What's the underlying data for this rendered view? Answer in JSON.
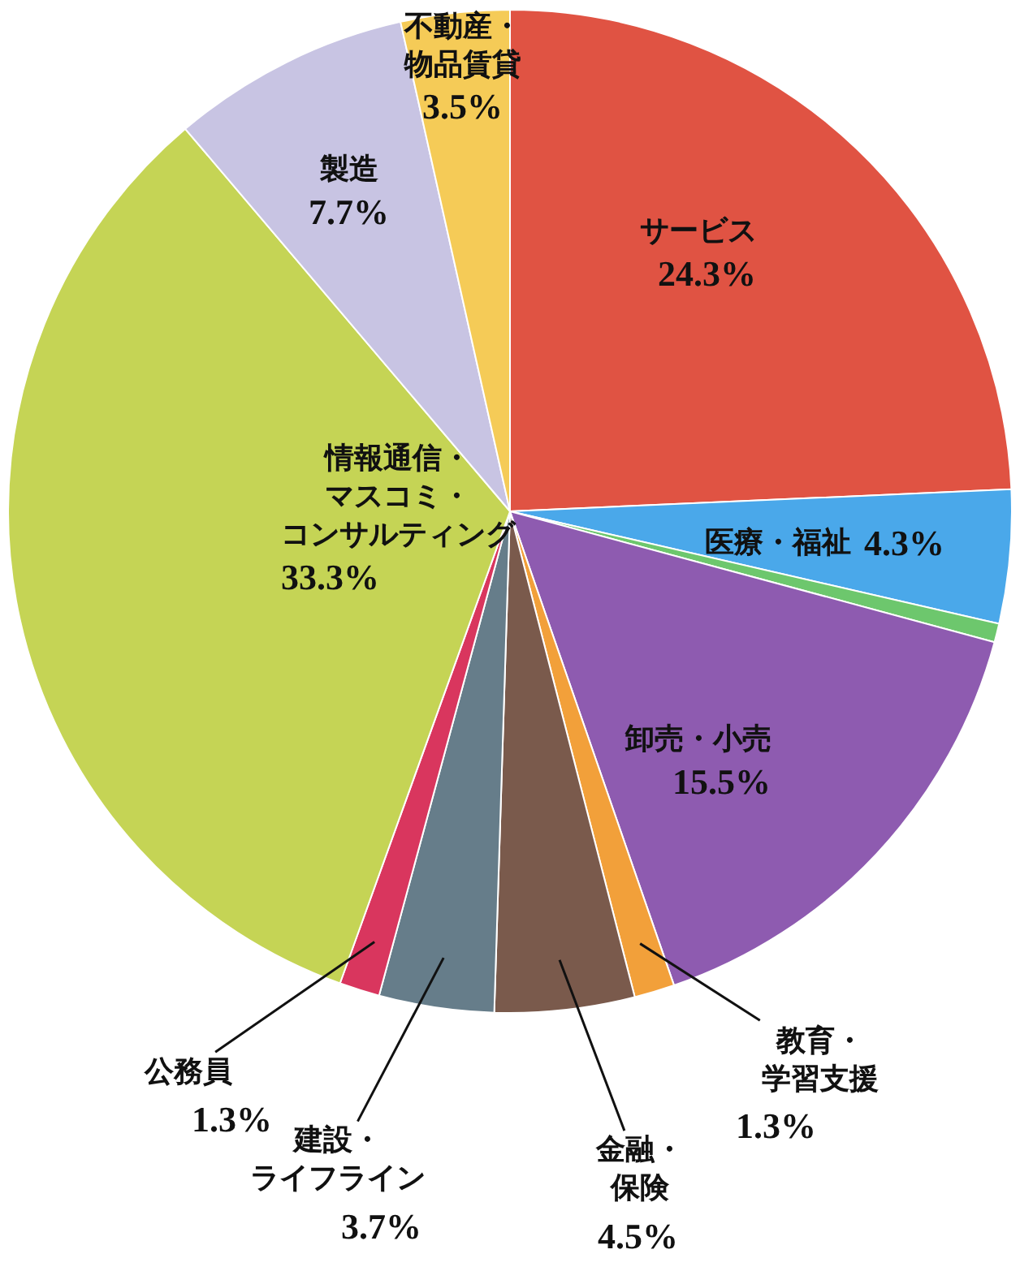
{
  "chart_data": {
    "type": "pie",
    "categories": [
      "サービス",
      "医療・福祉",
      null,
      "卸売・小売",
      "教育・学習支援",
      "金融・保険",
      "建設・ライフライン",
      "公務員",
      "情報通信・マスコミ・コンサルティング",
      "製造",
      "不動産・物品賃貸"
    ],
    "values": [
      24.3,
      4.3,
      0.6,
      15.5,
      1.3,
      4.5,
      3.7,
      1.3,
      33.3,
      7.7,
      3.5
    ],
    "value_labels": [
      "24.3%",
      "4.3%",
      null,
      "15.5%",
      "1.3%",
      "4.5%",
      "3.7%",
      "1.3%",
      "33.3%",
      "7.7%",
      "3.5%"
    ],
    "colors": [
      "#e05343",
      "#4aa8ea",
      "#6dc76d",
      "#8e5bb0",
      "#f2a03a",
      "#7a5a4c",
      "#667d8a",
      "#d9365e",
      "#c5d455",
      "#c8c4e3",
      "#f5cb57"
    ],
    "legend": false
  }
}
